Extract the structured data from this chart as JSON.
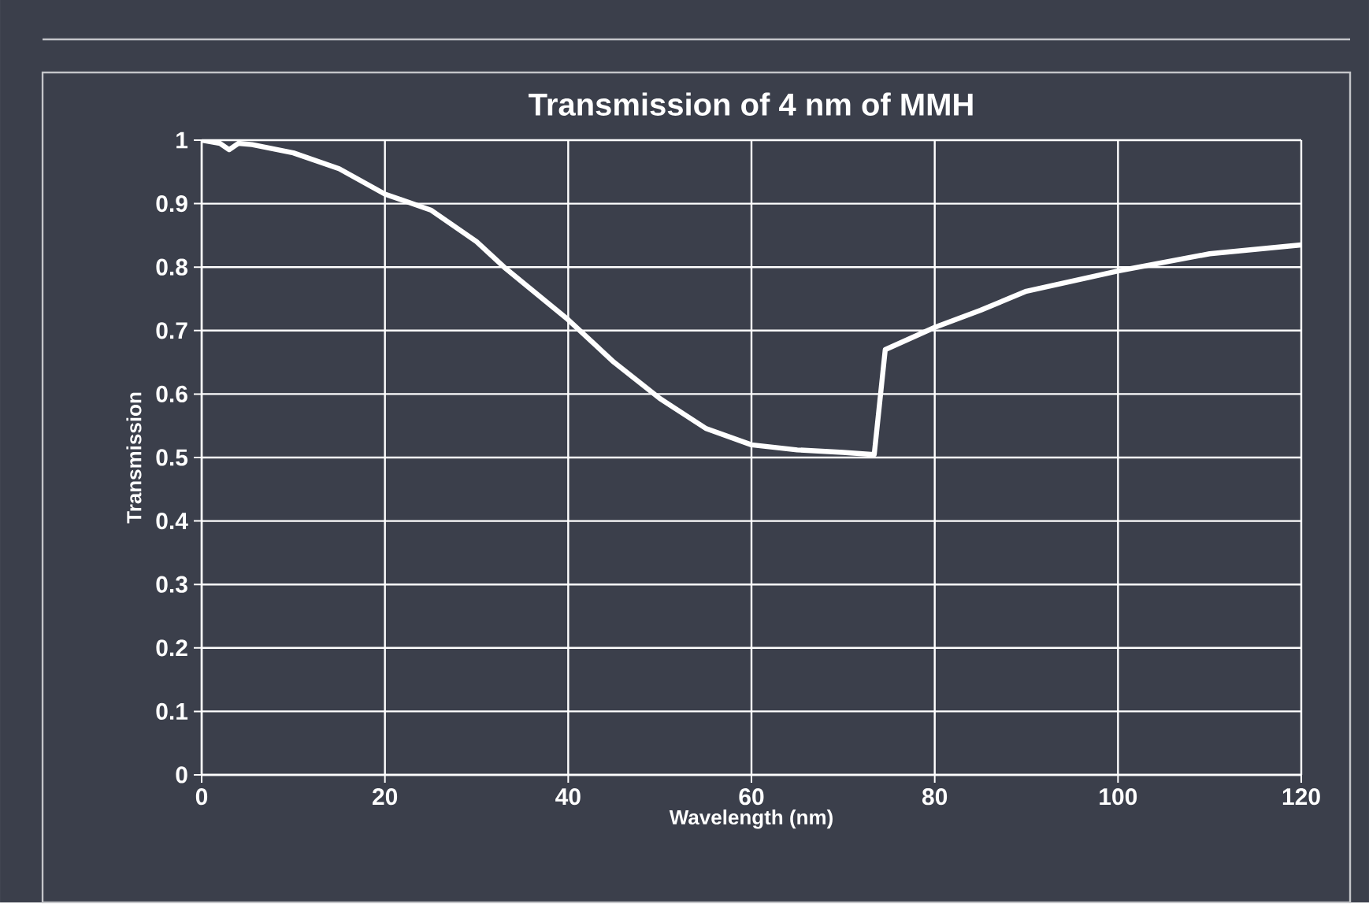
{
  "chart_data": {
    "type": "line",
    "title": "Transmission of 4 nm of MMH",
    "xlabel": "Wavelength (nm)",
    "ylabel": "Transmission",
    "series": [
      {
        "color": "#ffffff",
        "x": [
          0,
          2,
          3,
          4,
          5.5,
          10,
          15,
          20,
          25,
          30,
          33,
          40,
          45,
          50,
          55,
          60,
          65,
          70,
          73,
          73.4,
          74.6,
          80,
          85,
          90,
          100,
          110,
          120
        ],
        "values": [
          1.0,
          0.995,
          0.985,
          0.995,
          0.993,
          0.98,
          0.955,
          0.915,
          0.89,
          0.84,
          0.8,
          0.717,
          0.65,
          0.593,
          0.546,
          0.52,
          0.512,
          0.508,
          0.505,
          0.505,
          0.67,
          0.705,
          0.732,
          0.762,
          0.794,
          0.821,
          0.835
        ]
      }
    ],
    "xlim": [
      0,
      120
    ],
    "ylim": [
      0,
      1
    ],
    "xticks": [
      0,
      20,
      40,
      60,
      80,
      100,
      120
    ],
    "yticks": [
      0,
      0.1,
      0.2,
      0.3,
      0.4,
      0.5,
      0.6,
      0.7,
      0.8,
      0.9,
      1
    ],
    "grid": true,
    "marker": "none",
    "line_style": "solid"
  }
}
